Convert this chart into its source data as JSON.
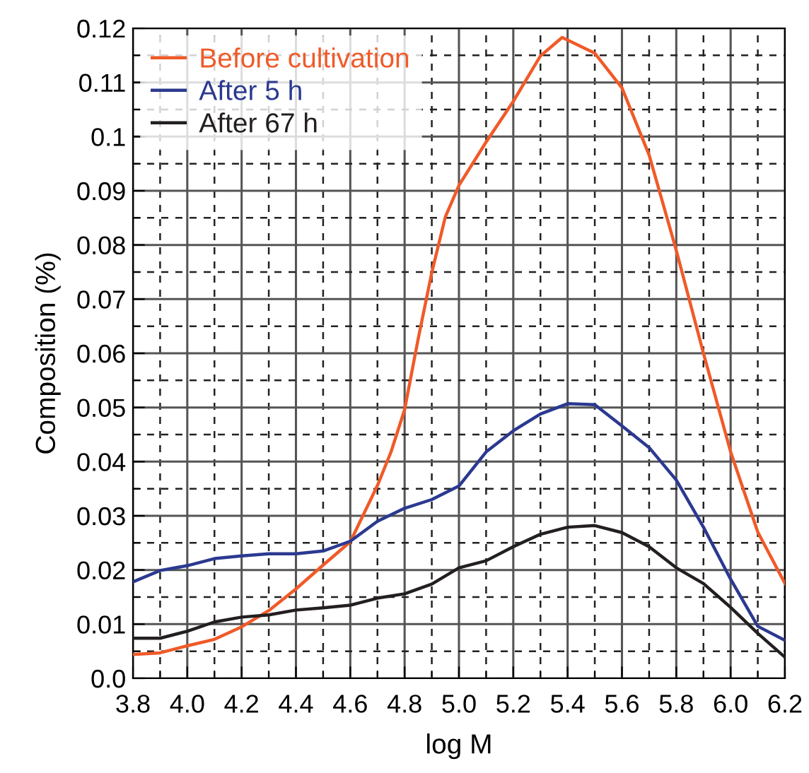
{
  "chart_data": {
    "type": "line",
    "xlabel": "log M",
    "ylabel": "Composition (%)",
    "xlim": [
      3.8,
      6.2
    ],
    "ylim": [
      0,
      0.12
    ],
    "xticks": [
      {
        "value": 3.8,
        "label": "3.8"
      },
      {
        "value": 3.9,
        "label": null
      },
      {
        "value": 4.0,
        "label": "4.0"
      },
      {
        "value": 4.1,
        "label": null
      },
      {
        "value": 4.2,
        "label": "4.2"
      },
      {
        "value": 4.3,
        "label": null
      },
      {
        "value": 4.4,
        "label": "4.4"
      },
      {
        "value": 4.5,
        "label": null
      },
      {
        "value": 4.6,
        "label": "4.6"
      },
      {
        "value": 4.7,
        "label": null
      },
      {
        "value": 4.8,
        "label": "4.8"
      },
      {
        "value": 4.9,
        "label": null
      },
      {
        "value": 5.0,
        "label": "5.0"
      },
      {
        "value": 5.1,
        "label": null
      },
      {
        "value": 5.2,
        "label": "5.2"
      },
      {
        "value": 5.3,
        "label": null
      },
      {
        "value": 5.4,
        "label": "5.4"
      },
      {
        "value": 5.5,
        "label": null
      },
      {
        "value": 5.6,
        "label": "5.6"
      },
      {
        "value": 5.7,
        "label": null
      },
      {
        "value": 5.8,
        "label": "5.8"
      },
      {
        "value": 5.9,
        "label": null
      },
      {
        "value": 6.0,
        "label": "6.0"
      },
      {
        "value": 6.1,
        "label": null
      },
      {
        "value": 6.2,
        "label": "6.2"
      }
    ],
    "yticks": [
      {
        "value": 0,
        "label": "0.0"
      },
      {
        "value": 0.005,
        "label": null
      },
      0.01,
      {
        "value": 0.015,
        "label": null
      },
      0.02,
      {
        "value": 0.025,
        "label": null
      },
      0.03,
      {
        "value": 0.035,
        "label": null
      },
      0.04,
      {
        "value": 0.045,
        "label": null
      },
      0.05,
      {
        "value": 0.055,
        "label": null
      },
      0.06,
      {
        "value": 0.065,
        "label": null
      },
      0.07,
      {
        "value": 0.075,
        "label": null
      },
      0.08,
      {
        "value": 0.085,
        "label": null
      },
      0.09,
      {
        "value": 0.095,
        "label": null
      },
      0.1,
      {
        "value": 0.105,
        "label": null
      },
      0.11,
      {
        "value": 0.115,
        "label": null
      },
      0.12
    ],
    "grid": true,
    "legend": "top left",
    "marker": "none",
    "line_style": "solid",
    "series": [
      {
        "name": "Before cultivation",
        "color": "#f05a28",
        "x": [
          3.8,
          3.9,
          4.0,
          4.1,
          4.2,
          4.3,
          4.4,
          4.5,
          4.6,
          4.7,
          4.75,
          4.8,
          4.85,
          4.9,
          4.95,
          5.0,
          5.1,
          5.2,
          5.3,
          5.38,
          5.5,
          5.6,
          5.7,
          5.8,
          5.9,
          6.0,
          6.1,
          6.2
        ],
        "values": [
          0.0044,
          0.0047,
          0.006,
          0.0072,
          0.0095,
          0.0125,
          0.0165,
          0.0209,
          0.0252,
          0.0356,
          0.0418,
          0.0496,
          0.0627,
          0.0749,
          0.0852,
          0.091,
          0.099,
          0.1065,
          0.1149,
          0.1183,
          0.1154,
          0.109,
          0.0966,
          0.079,
          0.06,
          0.0418,
          0.027,
          0.0175
        ]
      },
      {
        "name": "After 5 h",
        "color": "#2b3990",
        "x": [
          3.8,
          3.9,
          4.0,
          4.1,
          4.2,
          4.3,
          4.4,
          4.5,
          4.6,
          4.7,
          4.8,
          4.9,
          5.0,
          5.1,
          5.2,
          5.3,
          5.4,
          5.5,
          5.6,
          5.7,
          5.8,
          5.9,
          6.0,
          6.1,
          6.2
        ],
        "values": [
          0.0178,
          0.0199,
          0.0208,
          0.0221,
          0.0226,
          0.023,
          0.023,
          0.0235,
          0.0253,
          0.029,
          0.0314,
          0.033,
          0.0355,
          0.0418,
          0.0457,
          0.0488,
          0.0507,
          0.0505,
          0.0466,
          0.0426,
          0.0366,
          0.0279,
          0.0183,
          0.0096,
          0.007
        ]
      },
      {
        "name": "After 67 h",
        "color": "#231f20",
        "x": [
          3.8,
          3.9,
          4.0,
          4.1,
          4.2,
          4.3,
          4.4,
          4.5,
          4.6,
          4.7,
          4.8,
          4.9,
          5.0,
          5.1,
          5.2,
          5.3,
          5.4,
          5.5,
          5.6,
          5.7,
          5.8,
          5.9,
          6.0,
          6.1,
          6.2
        ],
        "values": [
          0.0074,
          0.0074,
          0.0087,
          0.0104,
          0.0113,
          0.0117,
          0.0126,
          0.013,
          0.0135,
          0.0148,
          0.0156,
          0.0174,
          0.0204,
          0.0217,
          0.0243,
          0.0266,
          0.0279,
          0.0282,
          0.0269,
          0.0243,
          0.0204,
          0.0175,
          0.0131,
          0.0083,
          0.0039
        ]
      }
    ]
  }
}
